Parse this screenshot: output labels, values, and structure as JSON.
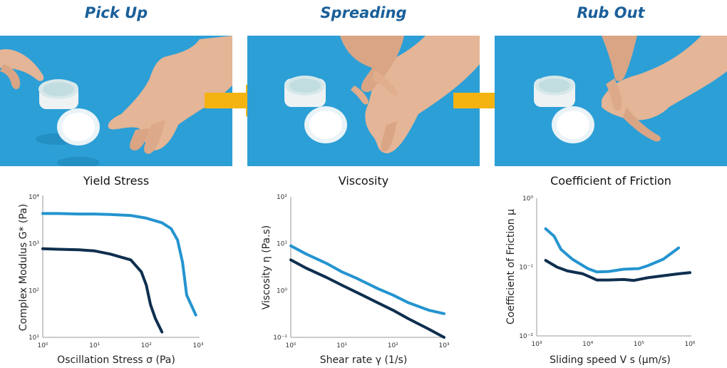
{
  "steps": [
    {
      "title": "Pick Up"
    },
    {
      "title": "Spreading"
    },
    {
      "title": "Rub Out"
    }
  ],
  "colors": {
    "title_blue": "#1a5f9a",
    "background_blue": "#2c9fd6",
    "arrow_gold": "#f5b312",
    "series_light": "#2494cf",
    "series_dark": "#0f2f4f"
  },
  "chart_data": [
    {
      "type": "line",
      "title": "Yield Stress",
      "xlabel": "Oscillation Stress σ (Pa)",
      "ylabel": "Complex Modulus G* (Pa)",
      "xscale": "log",
      "yscale": "log",
      "xlim": [
        1,
        1000
      ],
      "ylim": [
        10,
        10000
      ],
      "x_ticks": [
        "10⁰",
        "10¹",
        "10²",
        "10³"
      ],
      "y_ticks": [
        "10¹",
        "10²",
        "10³",
        "10⁴"
      ],
      "grid": false,
      "series": [
        {
          "color": "#2494cf",
          "points": [
            [
              1,
              4400
            ],
            [
              2,
              4400
            ],
            [
              5,
              4300
            ],
            [
              10,
              4300
            ],
            [
              20,
              4200
            ],
            [
              50,
              4000
            ],
            [
              100,
              3500
            ],
            [
              200,
              2800
            ],
            [
              300,
              2100
            ],
            [
              400,
              1200
            ],
            [
              500,
              400
            ],
            [
              600,
              80
            ],
            [
              900,
              30
            ]
          ]
        },
        {
          "color": "#0f2f4f",
          "points": [
            [
              1,
              780
            ],
            [
              2,
              760
            ],
            [
              5,
              740
            ],
            [
              10,
              700
            ],
            [
              20,
              600
            ],
            [
              50,
              450
            ],
            [
              80,
              250
            ],
            [
              100,
              130
            ],
            [
              120,
              50
            ],
            [
              150,
              25
            ],
            [
              200,
              13
            ]
          ]
        }
      ]
    },
    {
      "type": "line",
      "title": "Viscosity",
      "xlabel": "Shear rate γ (1/s)",
      "ylabel": "Viscosity η (Pa.s)",
      "xscale": "log",
      "yscale": "log",
      "xlim": [
        1,
        1000
      ],
      "ylim": [
        0.1,
        100
      ],
      "x_ticks": [
        "10⁰",
        "10¹",
        "10²",
        "10³"
      ],
      "y_ticks": [
        "10⁻¹",
        "10⁰",
        "10¹",
        "10²"
      ],
      "grid": false,
      "series": [
        {
          "color": "#2494cf",
          "points": [
            [
              1,
              9
            ],
            [
              2,
              6
            ],
            [
              5,
              3.8
            ],
            [
              10,
              2.5
            ],
            [
              20,
              1.8
            ],
            [
              50,
              1.1
            ],
            [
              100,
              0.8
            ],
            [
              200,
              0.55
            ],
            [
              500,
              0.38
            ],
            [
              1000,
              0.32
            ]
          ]
        },
        {
          "color": "#0f2f4f",
          "points": [
            [
              1,
              4.5
            ],
            [
              2,
              3
            ],
            [
              5,
              1.9
            ],
            [
              10,
              1.3
            ],
            [
              20,
              0.9
            ],
            [
              50,
              0.55
            ],
            [
              100,
              0.38
            ],
            [
              200,
              0.25
            ],
            [
              500,
              0.15
            ],
            [
              1000,
              0.1
            ]
          ]
        }
      ]
    },
    {
      "type": "line",
      "title": "Coefficient of Friction",
      "xlabel": "Sliding speed V s (μm/s)",
      "ylabel": "Coefficient of Friction μ",
      "xscale": "log",
      "yscale": "log",
      "xlim": [
        1000,
        1000000
      ],
      "ylim": [
        0.01,
        1
      ],
      "x_ticks": [
        "10³",
        "10⁴",
        "10⁵",
        "10⁶"
      ],
      "y_ticks": [
        "10⁻²",
        "10⁻¹",
        "10⁰"
      ],
      "grid": false,
      "series": [
        {
          "color": "#2494cf",
          "points": [
            [
              1500,
              0.36
            ],
            [
              2200,
              0.28
            ],
            [
              3000,
              0.18
            ],
            [
              5000,
              0.13
            ],
            [
              10000,
              0.095
            ],
            [
              15000,
              0.085
            ],
            [
              25000,
              0.086
            ],
            [
              50000,
              0.093
            ],
            [
              100000,
              0.095
            ],
            [
              150000,
              0.105
            ],
            [
              300000,
              0.13
            ],
            [
              600000,
              0.19
            ]
          ]
        },
        {
          "color": "#0f2f4f",
          "points": [
            [
              1500,
              0.125
            ],
            [
              2500,
              0.1
            ],
            [
              4000,
              0.088
            ],
            [
              8000,
              0.08
            ],
            [
              12000,
              0.07
            ],
            [
              15000,
              0.065
            ],
            [
              25000,
              0.065
            ],
            [
              50000,
              0.066
            ],
            [
              80000,
              0.064
            ],
            [
              150000,
              0.07
            ],
            [
              300000,
              0.075
            ],
            [
              600000,
              0.08
            ],
            [
              1000000,
              0.083
            ]
          ]
        }
      ]
    }
  ]
}
